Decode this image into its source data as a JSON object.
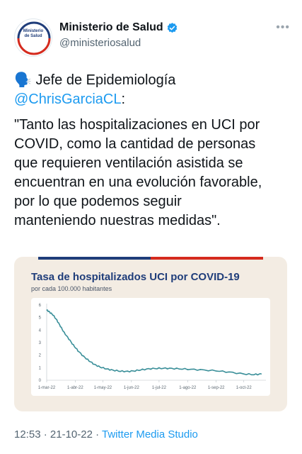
{
  "account": {
    "name": "Ministerio de Salud",
    "handle": "@ministeriosalud",
    "avatar_text": "Ministerio de Salud",
    "verified": true,
    "more_icon": "more-horizontal-icon"
  },
  "tweet": {
    "emoji": "🗣️",
    "line1": "Jefe de Epidemiología",
    "mention": "@ChrisGarciaCL",
    "mention_suffix": ":",
    "quote_lines": [
      "\"Tanto las hospitalizaciones en UCI por",
      "COVID, como la cantidad de personas",
      "que requieren ventilación asistida se",
      "encuentran en una evolución favorable,",
      "por lo que podemos seguir",
      "manteniendo nuestras medidas\"."
    ]
  },
  "colors": {
    "accent_blue": "#1f3d7a",
    "flag_red": "#d52b1e",
    "line_teal": "#3a8f99",
    "link": "#1d9bf0",
    "card_bg": "#f3ece3"
  },
  "chart_data": {
    "type": "line",
    "title": "Tasa de hospitalizados UCI por COVID-19",
    "subtitle": "por cada 100.000 habitantes",
    "xlabel": "",
    "ylabel": "",
    "ylim": [
      0,
      6
    ],
    "yticks": [
      "0",
      "1",
      "2",
      "3",
      "4",
      "5",
      "6"
    ],
    "xticks": [
      "1-mar-22",
      "1-abr-22",
      "1-may-22",
      "1-jun-22",
      "1-jul-22",
      "1-ago-22",
      "1-sep-22",
      "1-oct-22"
    ],
    "grid": false,
    "series": [
      {
        "values": [
          {
            "x": "2022-03-01",
            "y": 5.6
          },
          {
            "x": "2022-03-04",
            "y": 5.45
          },
          {
            "x": "2022-03-08",
            "y": 5.2
          },
          {
            "x": "2022-03-12",
            "y": 4.8
          },
          {
            "x": "2022-03-16",
            "y": 4.3
          },
          {
            "x": "2022-03-20",
            "y": 3.8
          },
          {
            "x": "2022-03-25",
            "y": 3.3
          },
          {
            "x": "2022-03-30",
            "y": 2.8
          },
          {
            "x": "2022-04-04",
            "y": 2.35
          },
          {
            "x": "2022-04-10",
            "y": 1.9
          },
          {
            "x": "2022-04-16",
            "y": 1.55
          },
          {
            "x": "2022-04-22",
            "y": 1.25
          },
          {
            "x": "2022-04-28",
            "y": 1.05
          },
          {
            "x": "2022-05-05",
            "y": 0.9
          },
          {
            "x": "2022-05-12",
            "y": 0.8
          },
          {
            "x": "2022-05-20",
            "y": 0.72
          },
          {
            "x": "2022-05-28",
            "y": 0.7
          },
          {
            "x": "2022-06-05",
            "y": 0.75
          },
          {
            "x": "2022-06-13",
            "y": 0.85
          },
          {
            "x": "2022-06-22",
            "y": 0.92
          },
          {
            "x": "2022-07-01",
            "y": 0.95
          },
          {
            "x": "2022-07-10",
            "y": 0.95
          },
          {
            "x": "2022-07-20",
            "y": 0.92
          },
          {
            "x": "2022-08-01",
            "y": 0.88
          },
          {
            "x": "2022-08-15",
            "y": 0.83
          },
          {
            "x": "2022-09-01",
            "y": 0.75
          },
          {
            "x": "2022-09-15",
            "y": 0.65
          },
          {
            "x": "2022-10-01",
            "y": 0.5
          },
          {
            "x": "2022-10-12",
            "y": 0.45
          },
          {
            "x": "2022-10-20",
            "y": 0.5
          }
        ]
      }
    ]
  },
  "meta": {
    "time": "12:53",
    "sep1": " · ",
    "date": "21-10-22",
    "sep2": " · ",
    "source": "Twitter Media Studio"
  }
}
